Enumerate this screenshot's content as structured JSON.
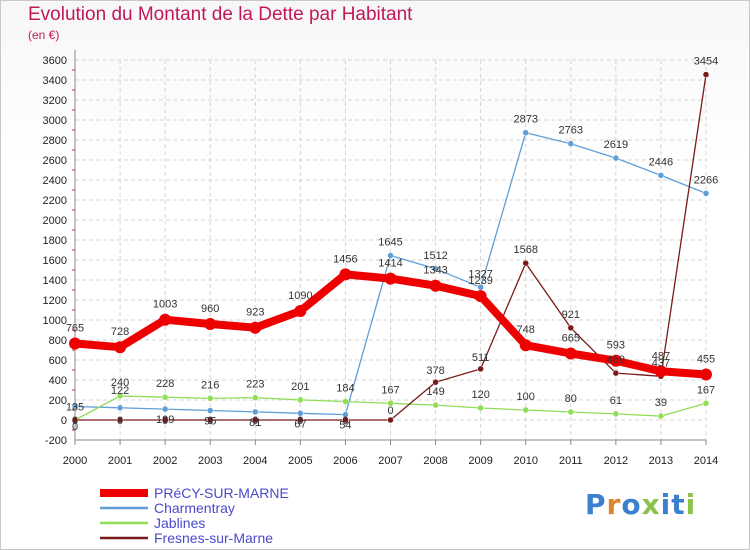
{
  "title": "Evolution du Montant de la Dette par Habitant",
  "subtitle": "(en €)",
  "brand": {
    "text": "Proxiti",
    "letter_colors": [
      "#3a7fd0",
      "#e0852a",
      "#3a7fd0",
      "#8bc34a",
      "#3a7fd0",
      "#3a7fd0",
      "#8bc34a"
    ]
  },
  "chart_data": {
    "type": "line",
    "title": "Evolution du Montant de la Dette par Habitant",
    "ylabel": "(en €)",
    "xlabel": "",
    "x": [
      "2000",
      "2001",
      "2002",
      "2003",
      "2004",
      "2005",
      "2006",
      "2007",
      "2008",
      "2009",
      "2010",
      "2011",
      "2012",
      "2013",
      "2014"
    ],
    "ylim": [
      -200,
      3600
    ],
    "yticks": [
      -200,
      0,
      200,
      400,
      600,
      800,
      1000,
      1200,
      1400,
      1600,
      1800,
      2000,
      2200,
      2400,
      2600,
      2800,
      3000,
      3200,
      3400,
      3600
    ],
    "grid": true,
    "legend_position": "bottom-left",
    "series": [
      {
        "name": "PRéCY-SUR-MARNE",
        "color": "#ee0000",
        "values": [
          765,
          728,
          1003,
          960,
          923,
          1090,
          1456,
          1414,
          1343,
          1239,
          748,
          665,
          593,
          487,
          455
        ],
        "labels": [
          "765",
          "728",
          "1003",
          "960",
          "923",
          "1090",
          "1456",
          "1414",
          "1343",
          "1239",
          "748",
          "665",
          "593",
          "487",
          "455"
        ]
      },
      {
        "name": "Charmentray",
        "color": "#5f9fd6",
        "values": [
          135,
          122,
          109,
          95,
          81,
          67,
          54,
          1645,
          1512,
          1327,
          2873,
          2763,
          2619,
          2446,
          2266
        ],
        "labels": [
          "135",
          "122",
          "109",
          "95",
          "81",
          "67",
          "54",
          "1645",
          "1512",
          "1327",
          "2873",
          "2763",
          "2619",
          "2446",
          "2266"
        ]
      },
      {
        "name": "Jablines",
        "color": "#90dd58",
        "values": [
          0,
          240,
          228,
          216,
          223,
          201,
          184,
          167,
          149,
          120,
          100,
          80,
          61,
          39,
          167
        ],
        "labels": [
          "0",
          "240",
          "228",
          "216",
          "223",
          "201",
          "184",
          "167",
          "149",
          "120",
          "100",
          "80",
          "61",
          "39",
          "167"
        ]
      },
      {
        "name": "Fresnes-sur-Marne",
        "color": "#7a1a1a",
        "values": [
          0,
          0,
          0,
          0,
          0,
          0,
          0,
          0,
          378,
          511,
          1568,
          921,
          469,
          437,
          3454
        ],
        "labels": [
          "0",
          "0",
          "0",
          "0",
          "0",
          "0",
          "0",
          "0",
          "378",
          "511",
          "1568",
          "921",
          "469",
          "437",
          "3454"
        ]
      }
    ]
  }
}
